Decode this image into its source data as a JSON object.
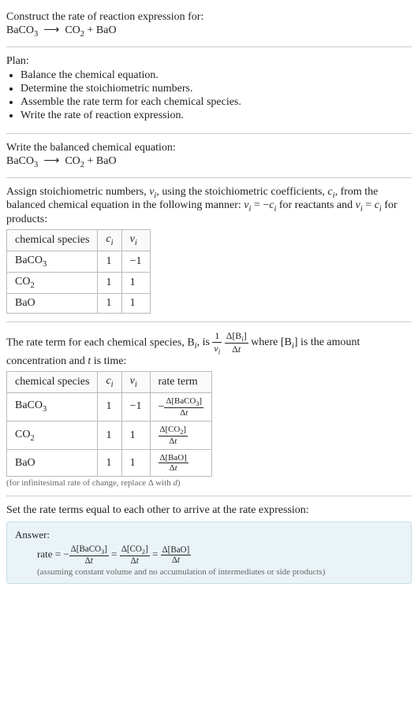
{
  "prompt": {
    "line1": "Construct the rate of reaction expression for:",
    "equation_html": "BaCO<span class='sub'>3</span> &nbsp;⟶&nbsp; CO<span class='sub'>2</span> + BaO"
  },
  "plan": {
    "heading": "Plan:",
    "items": [
      "Balance the chemical equation.",
      "Determine the stoichiometric numbers.",
      "Assemble the rate term for each chemical species.",
      "Write the rate of reaction expression."
    ]
  },
  "balanced": {
    "heading": "Write the balanced chemical equation:",
    "equation_html": "BaCO<span class='sub'>3</span> &nbsp;⟶&nbsp; CO<span class='sub'>2</span> + BaO"
  },
  "stoich": {
    "intro_html": "Assign stoichiometric numbers, <span class='italic'>ν<span class='sub'>i</span></span>, using the stoichiometric coefficients, <span class='italic'>c<span class='sub'>i</span></span>, from the balanced chemical equation in the following manner: <span class='italic'>ν<span class='sub'>i</span></span> = −<span class='italic'>c<span class='sub'>i</span></span> for reactants and <span class='italic'>ν<span class='sub'>i</span></span> = <span class='italic'>c<span class='sub'>i</span></span> for products:",
    "headers": {
      "species": "chemical species",
      "ci_html": "<span class='italic'>c<span class='sub'>i</span></span>",
      "vi_html": "<span class='italic'>ν<span class='sub'>i</span></span>"
    },
    "rows": [
      {
        "species_html": "BaCO<span class='sub'>3</span>",
        "ci": "1",
        "vi": "−1"
      },
      {
        "species_html": "CO<span class='sub'>2</span>",
        "ci": "1",
        "vi": "1"
      },
      {
        "species_html": "BaO",
        "ci": "1",
        "vi": "1"
      }
    ]
  },
  "rateterm": {
    "intro_pre": "The rate term for each chemical species, B",
    "intro_post_html": ", is <span class='frac inline-mid'><span class='num'>1</span><span class='den'><span class='italic'>ν<span class='sub'>i</span></span></span></span> <span class='frac inline-mid'><span class='num'>Δ[B<span class='sub italic'>i</span>]</span><span class='den'>Δ<span class='italic'>t</span></span></span> where [B<span class='sub italic'>i</span>] is the amount",
    "intro_line2_html": "concentration and <span class='italic'>t</span> is time:",
    "headers": {
      "species": "chemical species",
      "ci_html": "<span class='italic'>c<span class='sub'>i</span></span>",
      "vi_html": "<span class='italic'>ν<span class='sub'>i</span></span>",
      "rate": "rate term"
    },
    "rows": [
      {
        "species_html": "BaCO<span class='sub'>3</span>",
        "ci": "1",
        "vi": "−1",
        "rate_html": "−<span class='frac'><span class='num'>Δ[BaCO<span class='sub'>3</span>]</span><span class='den'>Δ<span class='italic'>t</span></span></span>"
      },
      {
        "species_html": "CO<span class='sub'>2</span>",
        "ci": "1",
        "vi": "1",
        "rate_html": "<span class='frac'><span class='num'>Δ[CO<span class='sub'>2</span>]</span><span class='den'>Δ<span class='italic'>t</span></span></span>"
      },
      {
        "species_html": "BaO",
        "ci": "1",
        "vi": "1",
        "rate_html": "<span class='frac'><span class='num'>Δ[BaO]</span><span class='den'>Δ<span class='italic'>t</span></span></span>"
      }
    ],
    "footnote_html": "(for infinitesimal rate of change, replace Δ with <span class='italic'>d</span>)"
  },
  "final": {
    "heading": "Set the rate terms equal to each other to arrive at the rate expression:",
    "answer_label": "Answer:",
    "rate_html": "rate = −<span class='frac inline-mid'><span class='num'>Δ[BaCO<span class='sub'>3</span>]</span><span class='den'>Δ<span class='italic'>t</span></span></span> = <span class='frac inline-mid'><span class='num'>Δ[CO<span class='sub'>2</span>]</span><span class='den'>Δ<span class='italic'>t</span></span></span> = <span class='frac inline-mid'><span class='num'>Δ[BaO]</span><span class='den'>Δ<span class='italic'>t</span></span></span>",
    "note": "(assuming constant volume and no accumulation of intermediates or side products)"
  }
}
